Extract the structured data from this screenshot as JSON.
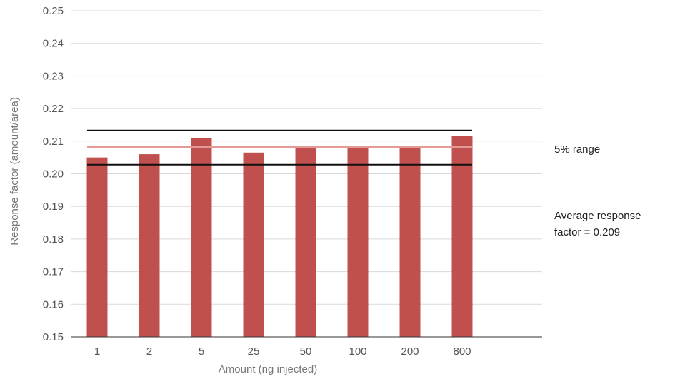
{
  "chart_data": {
    "type": "bar",
    "categories": [
      "1",
      "2",
      "5",
      "25",
      "50",
      "100",
      "200",
      "800"
    ],
    "values": [
      0.205,
      0.206,
      0.211,
      0.2065,
      0.2083,
      0.208,
      0.208,
      0.2115
    ],
    "xlabel": "Amount (ng injected)",
    "ylabel": "Response factor (amount/area)",
    "ylim": [
      0.15,
      0.25
    ],
    "yticks": [
      "0.15",
      "0.16",
      "0.17",
      "0.18",
      "0.19",
      "0.20",
      "0.21",
      "0.22",
      "0.23",
      "0.24",
      "0.25"
    ],
    "grid": true,
    "reference_lines": [
      {
        "role": "upper-range",
        "value": 0.2133
      },
      {
        "role": "average",
        "value": 0.2083
      },
      {
        "role": "lower-range",
        "value": 0.2028
      }
    ],
    "annotations": {
      "range_label": "5% range",
      "average_label": [
        "Average response",
        "factor = 0.209"
      ]
    },
    "colors": {
      "bar": "#c0504d",
      "range_line": "#111111",
      "average_line": "#e39a96",
      "grid": "#d9d9d9"
    }
  }
}
